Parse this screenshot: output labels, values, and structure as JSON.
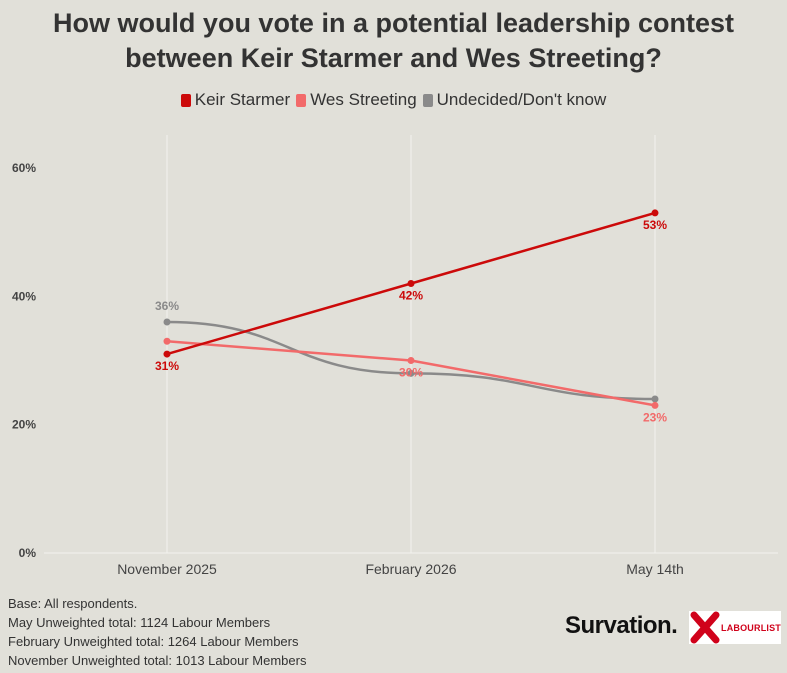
{
  "chart_data": {
    "type": "line",
    "title": "How would you vote in a potential leadership contest between Keir Starmer and Wes Streeting?",
    "title_lines": [
      "How would you vote in a potential leadership contest",
      "between Keir Starmer and Wes Streeting?"
    ],
    "categories": [
      "November 2025",
      "February 2026",
      "May 14th"
    ],
    "y_ticks": [
      "0%",
      "20%",
      "40%",
      "60%"
    ],
    "ylim": [
      0,
      60
    ],
    "legend_position": "top-center",
    "grid": "vertical",
    "series": [
      {
        "name": "Keir Starmer",
        "color": "#cc0a0a",
        "values": [
          31,
          42,
          53
        ],
        "labels": [
          "31%",
          "42%",
          "53%"
        ]
      },
      {
        "name": "Wes Streeting",
        "color": "#f26a6a",
        "values": [
          33,
          30,
          23
        ],
        "labels": [
          "",
          "30%",
          "23%"
        ]
      },
      {
        "name": "Undecided/Don't know",
        "color": "#8a8a8a",
        "values": [
          36,
          28,
          24
        ],
        "labels": [
          "36%",
          "",
          ""
        ]
      }
    ]
  },
  "notes": [
    "Base: All respondents.",
    "May Unweighted total: 1124 Labour Members",
    "February Unweighted total: 1264 Labour Members",
    "November Unweighted total: 1013 Labour Members"
  ],
  "logos": {
    "survation": "Survation.",
    "labourlist": "LABOURLIST"
  }
}
